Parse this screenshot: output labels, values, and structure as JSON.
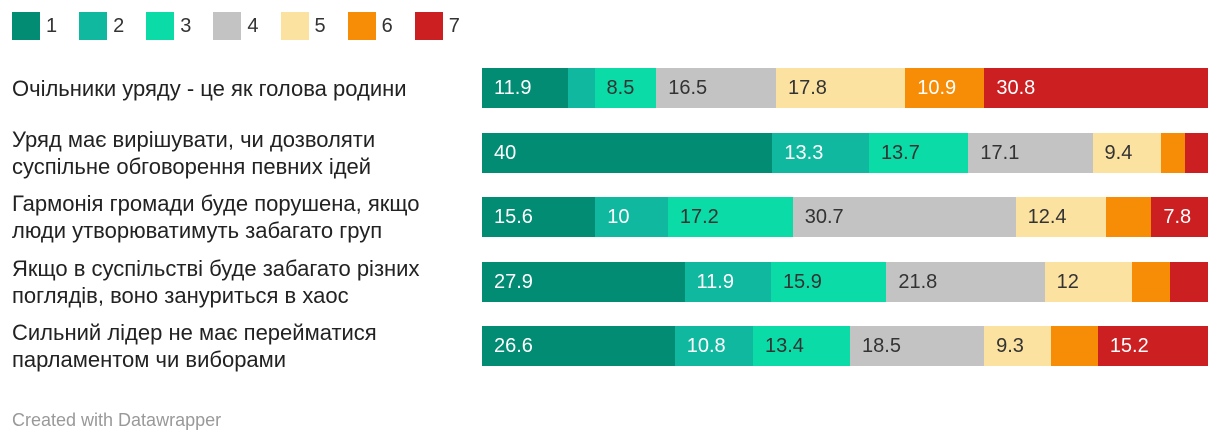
{
  "chart_data": {
    "type": "bar",
    "orientation": "horizontal",
    "stacked": true,
    "legend_position": "top-left",
    "legend": [
      {
        "label": "1",
        "color": "#028C73"
      },
      {
        "label": "2",
        "color": "#10B8A0"
      },
      {
        "label": "3",
        "color": "#0BDBA6"
      },
      {
        "label": "4",
        "color": "#C3C3C3"
      },
      {
        "label": "5",
        "color": "#FCE2A1"
      },
      {
        "label": "6",
        "color": "#F78C06"
      },
      {
        "label": "7",
        "color": "#CB1F22"
      }
    ],
    "rows": [
      {
        "label": "Очільники уряду - це як голова родини",
        "values": [
          11.9,
          3.6,
          8.5,
          16.5,
          17.8,
          10.9,
          30.8
        ],
        "labels": [
          "11.9",
          "",
          "8.5",
          "16.5",
          "17.8",
          "10.9",
          "30.8"
        ]
      },
      {
        "label": "Уряд має вирішувати, чи дозволяти суспільне обговорення певних ідей",
        "values": [
          40,
          13.3,
          13.7,
          17.1,
          9.4,
          3.3,
          3.2
        ],
        "labels": [
          "40",
          "13.3",
          "13.7",
          "17.1",
          "9.4",
          "",
          ""
        ]
      },
      {
        "label": "Гармонія громади буде порушена, якщо люди утворюватимуть забагато груп",
        "values": [
          15.6,
          10,
          17.2,
          30.7,
          12.4,
          6.3,
          7.8
        ],
        "labels": [
          "15.6",
          "10",
          "17.2",
          "30.7",
          "12.4",
          "",
          "7.8"
        ]
      },
      {
        "label": "Якщо в суспільстві буде забагато різних поглядів, воно зануриться в хаос",
        "values": [
          27.9,
          11.9,
          15.9,
          21.8,
          12,
          5.3,
          5.2
        ],
        "labels": [
          "27.9",
          "11.9",
          "15.9",
          "21.8",
          "12",
          "",
          ""
        ]
      },
      {
        "label": "Сильний лідер не має перейматися парламентом чи виборами",
        "values": [
          26.6,
          10.8,
          13.4,
          18.5,
          9.3,
          6.4,
          15.2
        ],
        "labels": [
          "26.6",
          "10.8",
          "13.4",
          "18.5",
          "9.3",
          "",
          "15.2"
        ]
      }
    ]
  },
  "footer": "Created with Datawrapper"
}
